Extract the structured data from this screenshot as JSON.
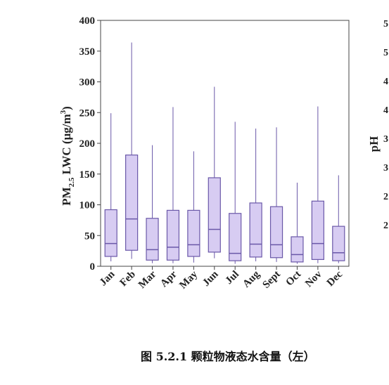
{
  "caption": "图 5.2.1 颗粒物液态水含量（左）",
  "chart_data": {
    "type": "box",
    "ylabel_main": "PM",
    "ylabel_sub": "2.5",
    "ylabel_rest": " LWC (μg/m",
    "ylabel_sup": "3",
    "ylabel_close": ")",
    "ylim": [
      0,
      400
    ],
    "yticks": [
      "0",
      "50",
      "100",
      "150",
      "200",
      "250",
      "300",
      "350",
      "400"
    ],
    "categories": [
      "Jan",
      "Feb",
      "Mar",
      "Apr",
      "May",
      "Jun",
      "Jul",
      "Aug",
      "Sept",
      "Oct",
      "Nov",
      "Dec"
    ],
    "boxes": [
      {
        "min": 8,
        "q1": 16,
        "median": 37,
        "q3": 92,
        "max": 249
      },
      {
        "min": 12,
        "q1": 26,
        "median": 77,
        "q3": 181,
        "max": 364
      },
      {
        "min": 5,
        "q1": 10,
        "median": 27,
        "q3": 78,
        "max": 197
      },
      {
        "min": 5,
        "q1": 10,
        "median": 31,
        "q3": 91,
        "max": 259
      },
      {
        "min": 6,
        "q1": 16,
        "median": 35,
        "q3": 91,
        "max": 187
      },
      {
        "min": 13,
        "q1": 23,
        "median": 60,
        "q3": 144,
        "max": 292
      },
      {
        "min": 4,
        "q1": 9,
        "median": 21,
        "q3": 86,
        "max": 235
      },
      {
        "min": 8,
        "q1": 15,
        "median": 36,
        "q3": 103,
        "max": 224
      },
      {
        "min": 7,
        "q1": 14,
        "median": 35,
        "q3": 97,
        "max": 226
      },
      {
        "min": 4,
        "q1": 7,
        "median": 19,
        "q3": 48,
        "max": 136
      },
      {
        "min": 5,
        "q1": 11,
        "median": 37,
        "q3": 106,
        "max": 260
      },
      {
        "min": 5,
        "q1": 9,
        "median": 22,
        "q3": 65,
        "max": 148
      }
    ],
    "box_fill": "#d7ccf2",
    "box_stroke": "#6a58a8"
  },
  "right_panel": {
    "ylabel": "pH",
    "tick_labels": [
      "5",
      "5",
      "4",
      "4",
      "3",
      "3",
      "2",
      "2"
    ]
  }
}
